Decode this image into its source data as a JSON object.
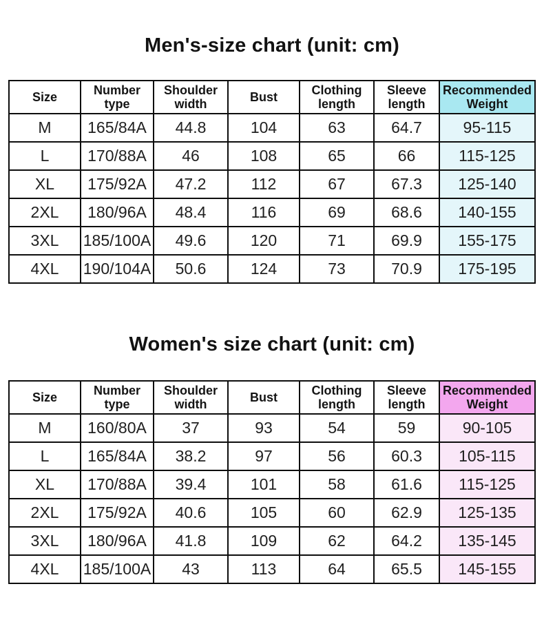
{
  "chart_data": [
    {
      "type": "table",
      "title": "Men's-size chart (unit: cm)",
      "columns": [
        "Size",
        "Number type",
        "Shoulder width",
        "Bust",
        "Clothing length",
        "Sleeve length",
        "Recommended Weight"
      ],
      "rows": [
        [
          "M",
          "165/84A",
          "44.8",
          "104",
          "63",
          "64.7",
          "95-115"
        ],
        [
          "L",
          "170/88A",
          "46",
          "108",
          "65",
          "66",
          "115-125"
        ],
        [
          "XL",
          "175/92A",
          "47.2",
          "112",
          "67",
          "67.3",
          "125-140"
        ],
        [
          "2XL",
          "180/96A",
          "48.4",
          "116",
          "69",
          "68.6",
          "140-155"
        ],
        [
          "3XL",
          "185/100A",
          "49.6",
          "120",
          "71",
          "69.9",
          "155-175"
        ],
        [
          "4XL",
          "190/104A",
          "50.6",
          "124",
          "73",
          "70.9",
          "175-195"
        ]
      ],
      "accent": {
        "accent_column": "Recommended Weight",
        "header_bg": "#a9e8f1",
        "column_bg": "#e4f6fa"
      }
    },
    {
      "type": "table",
      "title": "Women's size chart (unit: cm)",
      "columns": [
        "Size",
        "Number type",
        "Shoulder width",
        "Bust",
        "Clothing length",
        "Sleeve length",
        "Recommended Weight"
      ],
      "rows": [
        [
          "M",
          "160/80A",
          "37",
          "93",
          "54",
          "59",
          "90-105"
        ],
        [
          "L",
          "165/84A",
          "38.2",
          "97",
          "56",
          "60.3",
          "105-115"
        ],
        [
          "XL",
          "170/88A",
          "39.4",
          "101",
          "58",
          "61.6",
          "115-125"
        ],
        [
          "2XL",
          "175/92A",
          "40.6",
          "105",
          "60",
          "62.9",
          "125-135"
        ],
        [
          "3XL",
          "180/96A",
          "41.8",
          "109",
          "62",
          "64.2",
          "135-145"
        ],
        [
          "4XL",
          "185/100A",
          "43",
          "113",
          "64",
          "65.5",
          "145-155"
        ]
      ],
      "accent": {
        "accent_column": "Recommended Weight",
        "header_bg": "#f3a7ee",
        "column_bg": "#fae7f8"
      }
    }
  ]
}
